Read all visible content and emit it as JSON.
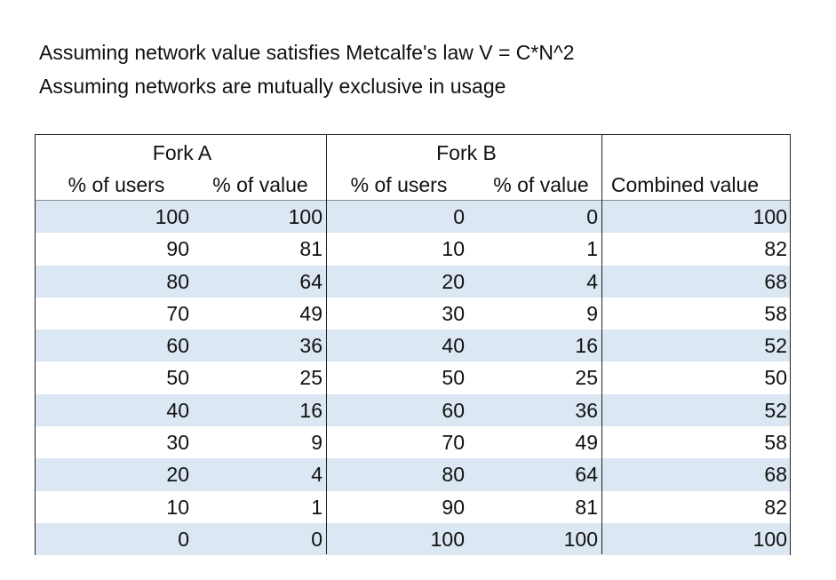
{
  "assumptions": [
    "Assuming network value satisfies Metcalfe's law V = C*N^2",
    "Assuming networks are mutually exclusive in usage"
  ],
  "table": {
    "groups": [
      "Fork A",
      "Fork B"
    ],
    "columns": [
      "% of users",
      "% of value",
      "% of users",
      "% of value",
      "Combined value"
    ],
    "rows": [
      [
        "100",
        "100",
        "0",
        "0",
        "100"
      ],
      [
        "90",
        "81",
        "10",
        "1",
        "82"
      ],
      [
        "80",
        "64",
        "20",
        "4",
        "68"
      ],
      [
        "70",
        "49",
        "30",
        "9",
        "58"
      ],
      [
        "60",
        "36",
        "40",
        "16",
        "52"
      ],
      [
        "50",
        "25",
        "50",
        "25",
        "50"
      ],
      [
        "40",
        "16",
        "60",
        "36",
        "52"
      ],
      [
        "30",
        "9",
        "70",
        "49",
        "58"
      ],
      [
        "20",
        "4",
        "80",
        "64",
        "68"
      ],
      [
        "10",
        "1",
        "90",
        "81",
        "82"
      ],
      [
        "0",
        "0",
        "100",
        "100",
        "100"
      ]
    ],
    "row_shading": "#dbe7f3"
  }
}
